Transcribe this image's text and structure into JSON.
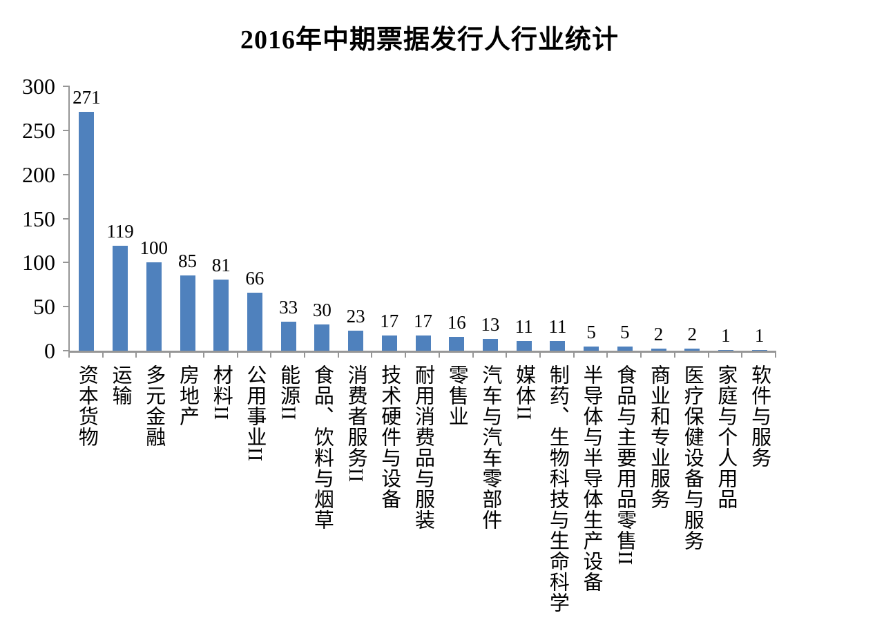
{
  "chart_data": {
    "type": "bar",
    "title": "2016年中期票据发行人行业统计",
    "categories": [
      "资本货物",
      "运输",
      "多元金融",
      "房地产",
      "材料II",
      "公用事业II",
      "能源II",
      "食品、饮料与烟草",
      "消费者服务II",
      "技术硬件与设备",
      "耐用消费品与服装",
      "零售业",
      "汽车与汽车零部件",
      "媒体II",
      "制药、生物科技与生命科学",
      "半导体与半导体生产设备",
      "食品与主要用品零售II",
      "商业和专业服务",
      "医疗保健设备与服务",
      "家庭与个人用品",
      "软件与服务"
    ],
    "values": [
      271,
      119,
      100,
      85,
      81,
      66,
      33,
      30,
      23,
      17,
      17,
      16,
      13,
      11,
      11,
      5,
      5,
      2,
      2,
      1,
      1
    ],
    "xlabel": "",
    "ylabel": "",
    "ylim": [
      0,
      300
    ],
    "y_ticks": [
      0,
      50,
      100,
      150,
      200,
      250,
      300
    ],
    "grid": false,
    "legend": "none",
    "data_labels": "outside-end",
    "colors": {
      "bar": "#4F81BD",
      "axis": "#969696",
      "text": "#000000",
      "background": "#FFFFFF"
    }
  }
}
